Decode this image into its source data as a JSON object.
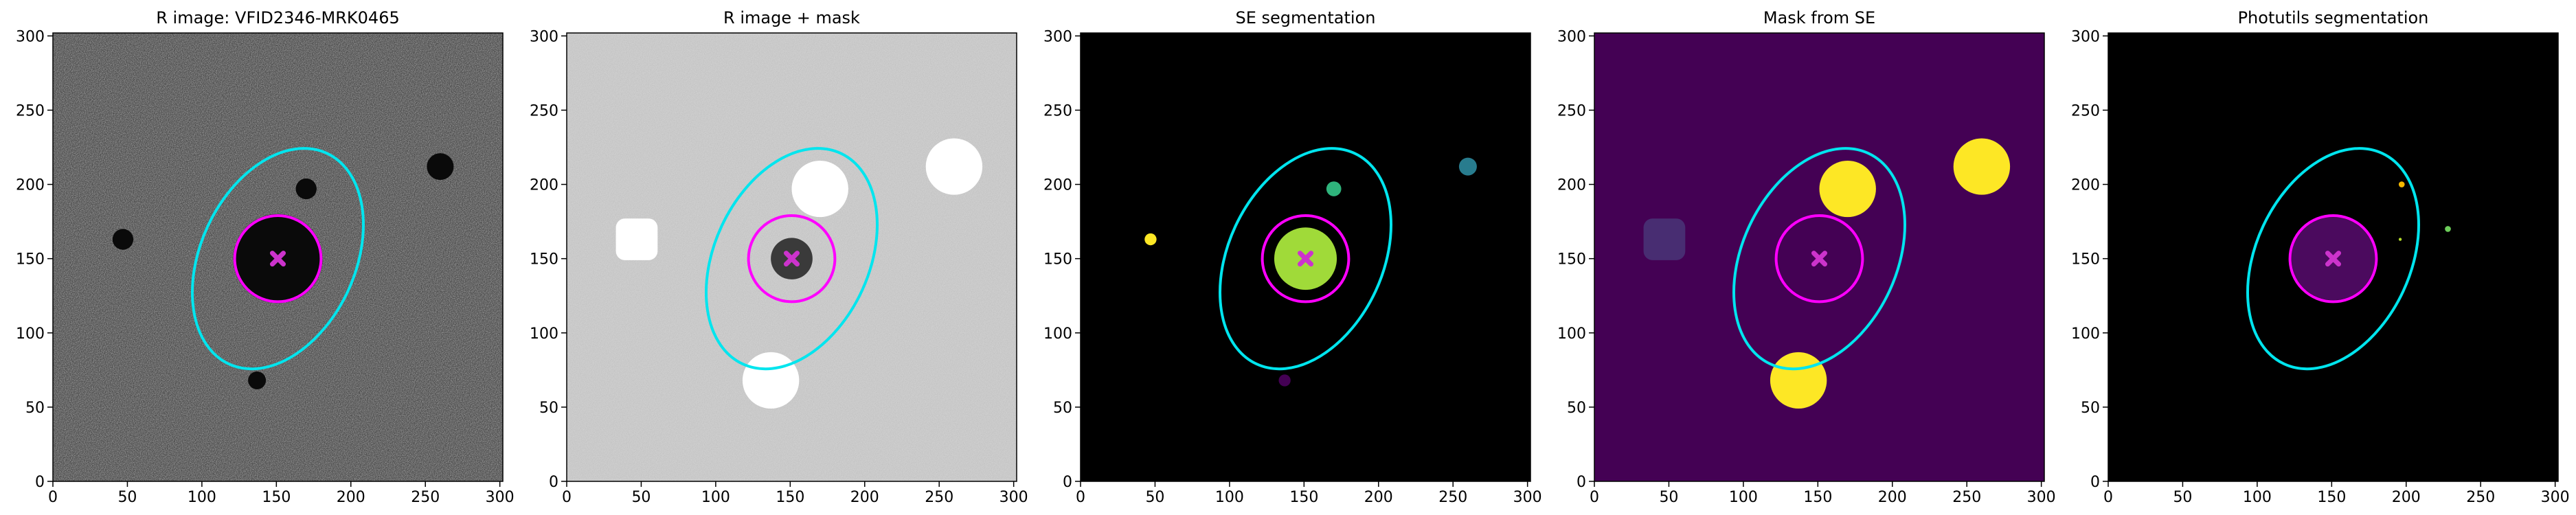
{
  "chart_data": [
    {
      "type": "image",
      "title": "R image: VFID2346-MRK0465",
      "background": "#4a4a4a",
      "noise": true,
      "xlim": [
        0,
        302
      ],
      "ylim": [
        0,
        302
      ],
      "xticks": [
        0,
        50,
        100,
        150,
        200,
        250,
        300
      ],
      "yticks": [
        0,
        50,
        100,
        150,
        200,
        250,
        300
      ],
      "regions": [
        {
          "x": 151,
          "y": 150,
          "r": 30,
          "color": "#0a0a0a"
        },
        {
          "x": 47,
          "y": 163,
          "r": 7,
          "color": "#0a0a0a"
        },
        {
          "x": 170,
          "y": 197,
          "r": 7,
          "color": "#0a0a0a"
        },
        {
          "x": 260,
          "y": 212,
          "r": 9,
          "color": "#0a0a0a"
        },
        {
          "x": 137,
          "y": 68,
          "r": 6,
          "color": "#0a0a0a"
        }
      ],
      "ellipse": {
        "x": 151,
        "y": 150,
        "a": 78,
        "b": 52,
        "angle": 65,
        "color": "#00e5ee"
      },
      "circle": {
        "x": 151,
        "y": 150,
        "r": 29,
        "color": "#ff00ff"
      },
      "marker": {
        "x": 151,
        "y": 150,
        "color": "#cc33cc"
      }
    },
    {
      "type": "image",
      "title": "R image + mask",
      "background": "#cfcfcf",
      "noise": true,
      "xlim": [
        0,
        302
      ],
      "ylim": [
        0,
        302
      ],
      "xticks": [
        0,
        50,
        100,
        150,
        200,
        250,
        300
      ],
      "yticks": [
        0,
        50,
        100,
        150,
        200,
        250,
        300
      ],
      "regions": [
        {
          "x": 151,
          "y": 150,
          "r": 14,
          "color": "#3a3a3a"
        },
        {
          "x": 47,
          "y": 163,
          "r": 14,
          "color": "#ffffff",
          "shape": "square"
        },
        {
          "x": 170,
          "y": 197,
          "r": 19,
          "color": "#ffffff"
        },
        {
          "x": 260,
          "y": 212,
          "r": 19,
          "color": "#ffffff"
        },
        {
          "x": 137,
          "y": 68,
          "r": 19,
          "color": "#ffffff"
        }
      ],
      "ellipse": {
        "x": 151,
        "y": 150,
        "a": 78,
        "b": 52,
        "angle": 65,
        "color": "#00e5ee"
      },
      "circle": {
        "x": 151,
        "y": 150,
        "r": 29,
        "color": "#ff00ff"
      },
      "marker": {
        "x": 151,
        "y": 150,
        "color": "#cc33cc"
      }
    },
    {
      "type": "image",
      "title": "SE segmentation",
      "background": "#000000",
      "noise": false,
      "xlim": [
        0,
        302
      ],
      "ylim": [
        0,
        302
      ],
      "xticks": [
        0,
        50,
        100,
        150,
        200,
        250,
        300
      ],
      "yticks": [
        0,
        50,
        100,
        150,
        200,
        250,
        300
      ],
      "regions": [
        {
          "x": 151,
          "y": 150,
          "r": 21,
          "color": "#a0da39"
        },
        {
          "x": 47,
          "y": 163,
          "r": 4,
          "color": "#fde725"
        },
        {
          "x": 170,
          "y": 197,
          "r": 5,
          "color": "#2fb47c"
        },
        {
          "x": 260,
          "y": 212,
          "r": 6,
          "color": "#287c8e"
        },
        {
          "x": 137,
          "y": 68,
          "r": 4,
          "color": "#440154"
        }
      ],
      "ellipse": {
        "x": 151,
        "y": 150,
        "a": 78,
        "b": 52,
        "angle": 65,
        "color": "#00e5ee"
      },
      "circle": {
        "x": 151,
        "y": 150,
        "r": 29,
        "color": "#ff00ff"
      },
      "marker": {
        "x": 151,
        "y": 150,
        "color": "#cc33cc"
      }
    },
    {
      "type": "image",
      "title": "Mask from SE",
      "background": "#440154",
      "noise": false,
      "xlim": [
        0,
        302
      ],
      "ylim": [
        0,
        302
      ],
      "xticks": [
        0,
        50,
        100,
        150,
        200,
        250,
        300
      ],
      "yticks": [
        0,
        50,
        100,
        150,
        200,
        250,
        300
      ],
      "regions": [
        {
          "x": 47,
          "y": 163,
          "r": 14,
          "color": "#482d72",
          "shape": "square"
        },
        {
          "x": 170,
          "y": 197,
          "r": 19,
          "color": "#fde725"
        },
        {
          "x": 260,
          "y": 212,
          "r": 19,
          "color": "#fde725"
        },
        {
          "x": 137,
          "y": 68,
          "r": 19,
          "color": "#fde725"
        }
      ],
      "ellipse": {
        "x": 151,
        "y": 150,
        "a": 78,
        "b": 52,
        "angle": 65,
        "color": "#00e5ee"
      },
      "circle": {
        "x": 151,
        "y": 150,
        "r": 29,
        "color": "#ff00ff"
      },
      "marker": {
        "x": 151,
        "y": 150,
        "color": "#cc33cc"
      }
    },
    {
      "type": "image",
      "title": "Photutils segmentation",
      "background": "#000000",
      "noise": false,
      "xlim": [
        0,
        302
      ],
      "ylim": [
        0,
        302
      ],
      "xticks": [
        0,
        50,
        100,
        150,
        200,
        250,
        300
      ],
      "yticks": [
        0,
        50,
        100,
        150,
        200,
        250,
        300
      ],
      "regions": [
        {
          "x": 151,
          "y": 150,
          "r": 28,
          "color": "#4b0a5e"
        },
        {
          "x": 197,
          "y": 200,
          "r": 2,
          "color": "#f5b800"
        },
        {
          "x": 228,
          "y": 170,
          "r": 2,
          "color": "#6ccd5a"
        },
        {
          "x": 196,
          "y": 163,
          "r": 1,
          "color": "#b5de2b"
        }
      ],
      "ellipse": {
        "x": 151,
        "y": 150,
        "a": 78,
        "b": 52,
        "angle": 65,
        "color": "#00e5ee"
      },
      "circle": {
        "x": 151,
        "y": 150,
        "r": 29,
        "color": "#ff00ff"
      },
      "marker": {
        "x": 151,
        "y": 150,
        "color": "#cc33cc"
      }
    }
  ]
}
